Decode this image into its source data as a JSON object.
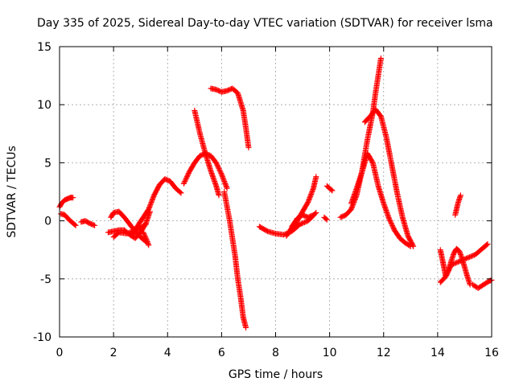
{
  "chart_data": {
    "type": "scatter",
    "title": "Day 335 of 2025, Sidereal Day-to-day VTEC variation (SDTVAR) for receiver lsma",
    "xlabel": "GPS time / hours",
    "ylabel": "SDTVAR / TECUs",
    "xlim": [
      0,
      16
    ],
    "ylim": [
      -10,
      15
    ],
    "xticks": [
      0,
      2,
      4,
      6,
      8,
      10,
      12,
      14,
      16
    ],
    "xtick_labels": [
      "0",
      "2",
      "4",
      "6",
      "8",
      "10",
      "12",
      "14",
      "16"
    ],
    "yticks": [
      -10,
      -5,
      0,
      5,
      10,
      15
    ],
    "ytick_labels": [
      "-10",
      "-5",
      "0",
      "5",
      "10",
      "15"
    ],
    "grid": true,
    "marker": "+",
    "color": "#ff0000",
    "series": [
      {
        "name": "arc-01",
        "x": [
          0.0,
          0.1,
          0.2,
          0.3,
          0.4,
          0.5
        ],
        "y": [
          1.2,
          1.6,
          1.8,
          1.9,
          2.0,
          2.0
        ]
      },
      {
        "name": "arc-02",
        "x": [
          0.05,
          0.2,
          0.35,
          0.5,
          0.6
        ],
        "y": [
          0.6,
          0.5,
          0.1,
          -0.2,
          -0.4
        ]
      },
      {
        "name": "arc-03",
        "x": [
          0.8,
          0.95,
          1.1,
          1.3
        ],
        "y": [
          -0.1,
          0.0,
          -0.2,
          -0.4
        ]
      },
      {
        "name": "arc-04",
        "x": [
          1.9,
          2.0,
          2.2,
          2.4,
          2.6,
          2.8,
          3.0,
          3.2
        ],
        "y": [
          0.3,
          0.7,
          0.8,
          0.3,
          -0.3,
          -0.9,
          -1.4,
          -1.8
        ]
      },
      {
        "name": "arc-05",
        "x": [
          2.0,
          2.2,
          2.5,
          2.8,
          3.0,
          3.2
        ],
        "y": [
          -1.4,
          -1.0,
          -1.1,
          -0.8,
          -0.6,
          -0.3
        ]
      },
      {
        "name": "arc-06",
        "x": [
          1.8,
          2.0,
          2.2,
          2.4,
          2.6,
          2.8,
          3.0,
          3.2,
          3.35
        ],
        "y": [
          -1.0,
          -0.9,
          -0.8,
          -0.8,
          -1.2,
          -1.5,
          -1.0,
          -0.2,
          0.8
        ]
      },
      {
        "name": "arc-07",
        "x": [
          2.7,
          2.9,
          3.1,
          3.3,
          3.5,
          3.7,
          3.9,
          4.1,
          4.3,
          4.5
        ],
        "y": [
          -1.2,
          -0.4,
          0.3,
          1.0,
          2.2,
          3.1,
          3.6,
          3.4,
          2.8,
          2.4
        ]
      },
      {
        "name": "arc-08",
        "x": [
          3.1,
          3.2,
          3.3
        ],
        "y": [
          -1.0,
          -1.5,
          -2.1
        ]
      },
      {
        "name": "arc-09",
        "x": [
          4.6,
          4.8,
          5.0,
          5.2,
          5.4,
          5.6,
          5.8,
          6.0,
          6.2
        ],
        "y": [
          3.2,
          4.2,
          5.0,
          5.6,
          5.8,
          5.6,
          5.0,
          4.0,
          2.8
        ]
      },
      {
        "name": "arc-10",
        "x": [
          5.0,
          5.2,
          5.4,
          5.6,
          5.8,
          5.9
        ],
        "y": [
          9.5,
          7.5,
          5.8,
          4.3,
          3.0,
          2.2
        ]
      },
      {
        "name": "arc-11",
        "x": [
          5.6,
          5.8,
          6.0,
          6.2,
          6.4,
          6.6,
          6.8,
          6.9,
          7.0
        ],
        "y": [
          11.4,
          11.3,
          11.1,
          11.2,
          11.4,
          11.0,
          9.5,
          8.0,
          6.3
        ]
      },
      {
        "name": "arc-12",
        "x": [
          6.1,
          6.3,
          6.5,
          6.6,
          6.7,
          6.8,
          6.9
        ],
        "y": [
          2.5,
          0.0,
          -3.0,
          -5.0,
          -6.5,
          -8.3,
          -9.2
        ]
      },
      {
        "name": "arc-13",
        "x": [
          7.4,
          7.7,
          8.0,
          8.3,
          8.6,
          8.9,
          9.2,
          9.5
        ],
        "y": [
          -0.5,
          -0.9,
          -1.1,
          -1.2,
          -0.9,
          -0.3,
          0.0,
          0.7
        ]
      },
      {
        "name": "arc-14",
        "x": [
          8.4,
          8.6,
          8.8,
          9.0,
          9.2,
          9.4,
          9.5
        ],
        "y": [
          -1.3,
          -0.6,
          0.0,
          0.8,
          1.6,
          2.8,
          3.8
        ]
      },
      {
        "name": "arc-15",
        "x": [
          8.6,
          8.8,
          9.0,
          9.2,
          9.4
        ],
        "y": [
          -0.5,
          0.2,
          0.5,
          0.3,
          0.5
        ]
      },
      {
        "name": "arc-16",
        "x": [
          9.8,
          9.9
        ],
        "y": [
          0.3,
          0.1
        ]
      },
      {
        "name": "arc-17",
        "x": [
          9.9,
          10.0,
          10.1
        ],
        "y": [
          3.0,
          2.8,
          2.6
        ]
      },
      {
        "name": "arc-18",
        "x": [
          10.4,
          10.6,
          10.8,
          11.0,
          11.2,
          11.4,
          11.6,
          11.7,
          11.8,
          11.9
        ],
        "y": [
          0.3,
          0.5,
          1.0,
          2.2,
          4.3,
          7.0,
          9.3,
          11.0,
          12.5,
          14.0
        ]
      },
      {
        "name": "arc-19",
        "x": [
          11.3,
          11.5,
          11.7,
          11.9,
          12.1,
          12.3,
          12.5,
          12.7,
          12.9,
          13.1
        ],
        "y": [
          8.5,
          9.0,
          9.6,
          9.0,
          7.2,
          4.8,
          2.4,
          0.3,
          -1.3,
          -2.2
        ]
      },
      {
        "name": "arc-20",
        "x": [
          10.8,
          11.0,
          11.2,
          11.4,
          11.6,
          11.8,
          12.0,
          12.2,
          12.4,
          12.6,
          12.8,
          13.0
        ],
        "y": [
          1.5,
          2.8,
          4.2,
          5.8,
          5.0,
          3.0,
          1.5,
          0.2,
          -0.8,
          -1.5,
          -1.9,
          -2.2
        ]
      },
      {
        "name": "arc-21",
        "x": [
          14.1,
          14.2,
          14.3,
          14.4,
          14.5,
          14.6,
          14.7,
          14.8,
          14.9,
          15.0,
          15.1,
          15.2
        ],
        "y": [
          -2.5,
          -3.6,
          -4.8,
          -4.3,
          -3.5,
          -2.8,
          -2.4,
          -2.6,
          -3.2,
          -4.0,
          -4.8,
          -5.5
        ]
      },
      {
        "name": "arc-22",
        "x": [
          14.1,
          14.3,
          14.5,
          14.8,
          15.1,
          15.4,
          15.7,
          15.85
        ],
        "y": [
          -5.3,
          -4.8,
          -3.8,
          -3.5,
          -3.2,
          -2.9,
          -2.3,
          -2.0
        ]
      },
      {
        "name": "arc-23",
        "x": [
          14.65,
          14.75,
          14.85
        ],
        "y": [
          0.5,
          1.5,
          2.2
        ]
      },
      {
        "name": "arc-24",
        "x": [
          15.3,
          15.5,
          15.7,
          15.9,
          16.0
        ],
        "y": [
          -5.5,
          -5.8,
          -5.5,
          -5.2,
          -5.1
        ]
      }
    ]
  }
}
